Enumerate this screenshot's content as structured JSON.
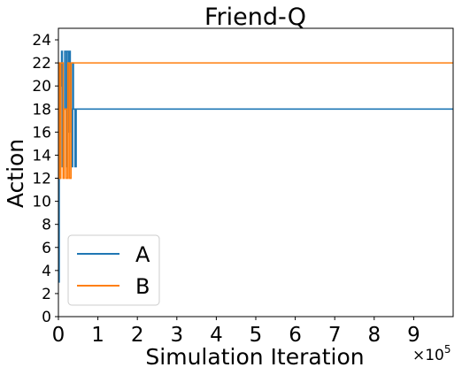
{
  "chart_data": {
    "type": "line",
    "title": "Friend-Q",
    "xlabel": "Simulation Iteration",
    "ylabel": "Action",
    "x_multiplier_label": "×10",
    "x_multiplier_exp": "5",
    "xlim": [
      0,
      10
    ],
    "ylim": [
      0,
      25
    ],
    "x_ticks": [
      "0",
      "1",
      "2",
      "3",
      "4",
      "5",
      "6",
      "7",
      "8",
      "9"
    ],
    "y_ticks": [
      "0",
      "2",
      "4",
      "6",
      "8",
      "10",
      "12",
      "14",
      "16",
      "18",
      "20",
      "22",
      "24"
    ],
    "grid": false,
    "legend_position": "lower-left",
    "series": [
      {
        "name": "A",
        "color": "#1f77b4",
        "x": [
          0,
          0.02,
          0.02,
          0.05,
          0.05,
          0.08,
          0.08,
          0.1,
          0.1,
          0.14,
          0.14,
          0.16,
          0.16,
          0.2,
          0.2,
          0.22,
          0.22,
          0.26,
          0.26,
          0.28,
          0.28,
          0.3,
          0.3,
          0.33,
          0.33,
          0.36,
          0.36,
          0.38,
          0.38,
          0.42,
          0.42,
          0.45,
          0.45,
          10
        ],
        "y": [
          3,
          3,
          12,
          12,
          20,
          20,
          23,
          23,
          13,
          13,
          18,
          18,
          23,
          23,
          13,
          13,
          23,
          23,
          16,
          16,
          23,
          23,
          18,
          18,
          13,
          13,
          22,
          22,
          18,
          18,
          13,
          13,
          18,
          18
        ]
      },
      {
        "name": "B",
        "color": "#ff7f0e",
        "x": [
          0,
          0.03,
          0.03,
          0.06,
          0.06,
          0.12,
          0.12,
          0.15,
          0.15,
          0.2,
          0.2,
          0.24,
          0.24,
          0.28,
          0.28,
          0.32,
          0.32,
          0.35,
          0.35,
          10
        ],
        "y": [
          22,
          22,
          12,
          12,
          22,
          22,
          12,
          12,
          18,
          18,
          12,
          12,
          22,
          22,
          12,
          12,
          22,
          22,
          22,
          22
        ]
      }
    ]
  }
}
